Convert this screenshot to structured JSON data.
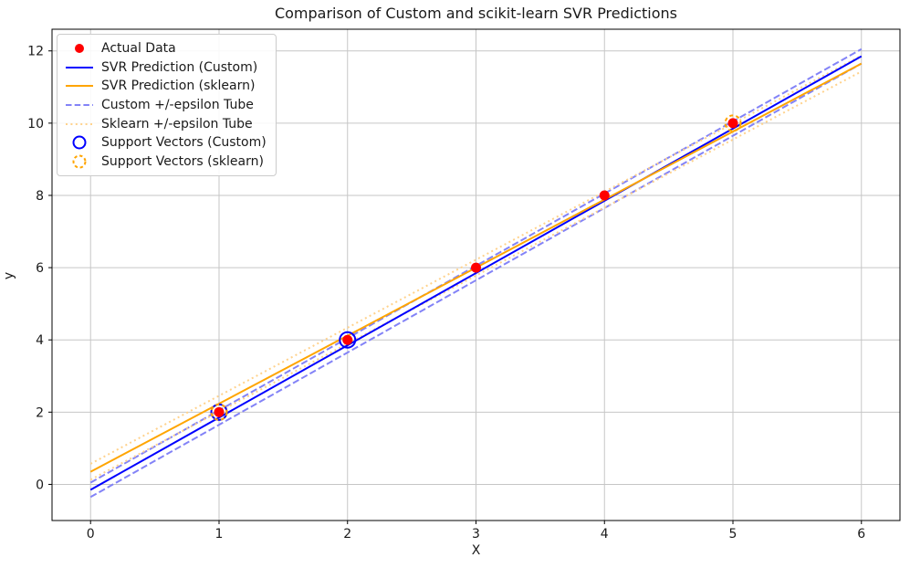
{
  "figure": {
    "title": "Comparison of Custom and scikit-learn SVR Predictions",
    "xlabel": "X",
    "ylabel": "y"
  },
  "colors": {
    "actual": "#ff0000",
    "custom_line": "#0000ff",
    "sklearn_line": "#ffa500",
    "custom_tube": "#8383f7",
    "sklearn_tube": "#ffd28c",
    "grid": "#c6c6c6",
    "spine": "#000000",
    "text": "#1a1a1a",
    "legend_border": "#cccccc"
  },
  "chart_data": {
    "type": "line",
    "title": "Comparison of Custom and scikit-learn SVR Predictions",
    "xlabel": "X",
    "ylabel": "y",
    "axes": {
      "xlim": [
        -0.3,
        6.3
      ],
      "ylim": [
        -1.0,
        12.6
      ],
      "xticks": [
        0,
        1,
        2,
        3,
        4,
        5,
        6
      ],
      "yticks": [
        0,
        2,
        4,
        6,
        8,
        10,
        12
      ],
      "grid": true,
      "legend_position": "upper-left"
    },
    "series": [
      {
        "id": "actual-data",
        "name": "Actual Data",
        "kind": "scatter",
        "z": 3,
        "color": "#ff0000",
        "size": 5.5,
        "points": [
          [
            1,
            2
          ],
          [
            2,
            4
          ],
          [
            3,
            6
          ],
          [
            4,
            8
          ],
          [
            5,
            10
          ]
        ]
      },
      {
        "id": "svr-custom",
        "name": "SVR Prediction (Custom)",
        "kind": "line",
        "z": 2,
        "color": "#0000ff",
        "width": 2,
        "x": [
          0,
          6
        ],
        "y": [
          -0.15,
          11.85
        ]
      },
      {
        "id": "svr-sklearn",
        "name": "SVR Prediction (sklearn)",
        "kind": "line",
        "z": 2,
        "color": "#ffa500",
        "width": 2,
        "x": [
          0,
          6
        ],
        "y": [
          0.35,
          11.65
        ]
      },
      {
        "id": "custom-epsilon-tube",
        "name": "Custom +/-epsilon Tube",
        "kind": "multiline",
        "z": 1,
        "color": "#8383f7",
        "width": 2,
        "dash": "7.4 3.2",
        "epsilon": 0.2,
        "lines": [
          {
            "x": [
              0,
              6
            ],
            "y": [
              0.05,
              12.05
            ]
          },
          {
            "x": [
              0,
              6
            ],
            "y": [
              -0.35,
              11.65
            ]
          }
        ]
      },
      {
        "id": "sklearn-epsilon-tube",
        "name": "Sklearn +/-epsilon Tube",
        "kind": "multiline",
        "z": 1,
        "color": "#ffd28c",
        "width": 2,
        "dash": "2 3.4",
        "epsilon": 0.22,
        "lines": [
          {
            "x": [
              0,
              6
            ],
            "y": [
              0.57,
              11.87
            ]
          },
          {
            "x": [
              0,
              6
            ],
            "y": [
              0.13,
              11.43
            ]
          }
        ]
      },
      {
        "id": "support-vectors-custom",
        "name": "Support Vectors (Custom)",
        "kind": "scatter-open",
        "z": 4,
        "color": "#0000ff",
        "size": 8.5,
        "width": 2,
        "points": [
          [
            1,
            2
          ],
          [
            2,
            4
          ]
        ]
      },
      {
        "id": "support-vectors-sklearn",
        "name": "Support Vectors (sklearn)",
        "kind": "scatter-open",
        "z": 5,
        "color": "#ffa500",
        "size": 8.5,
        "width": 2,
        "dash": "4 3.2",
        "points": [
          [
            1,
            2
          ],
          [
            5,
            10
          ]
        ]
      }
    ]
  },
  "legend": {
    "items": [
      {
        "label": "Actual Data",
        "marker": "dot",
        "color": "#ff0000"
      },
      {
        "label": "SVR Prediction (Custom)",
        "marker": "line",
        "color": "#0000ff"
      },
      {
        "label": "SVR Prediction (sklearn)",
        "marker": "line",
        "color": "#ffa500"
      },
      {
        "label": "Custom +/-epsilon Tube",
        "marker": "dashed-line",
        "color": "#8383f7"
      },
      {
        "label": "Sklearn +/-epsilon Tube",
        "marker": "dotted-line",
        "color": "#ffd28c"
      },
      {
        "label": "Support Vectors (Custom)",
        "marker": "circle",
        "color": "#0000ff"
      },
      {
        "label": "Support Vectors (sklearn)",
        "marker": "dashed-circle",
        "color": "#ffa500"
      }
    ]
  }
}
